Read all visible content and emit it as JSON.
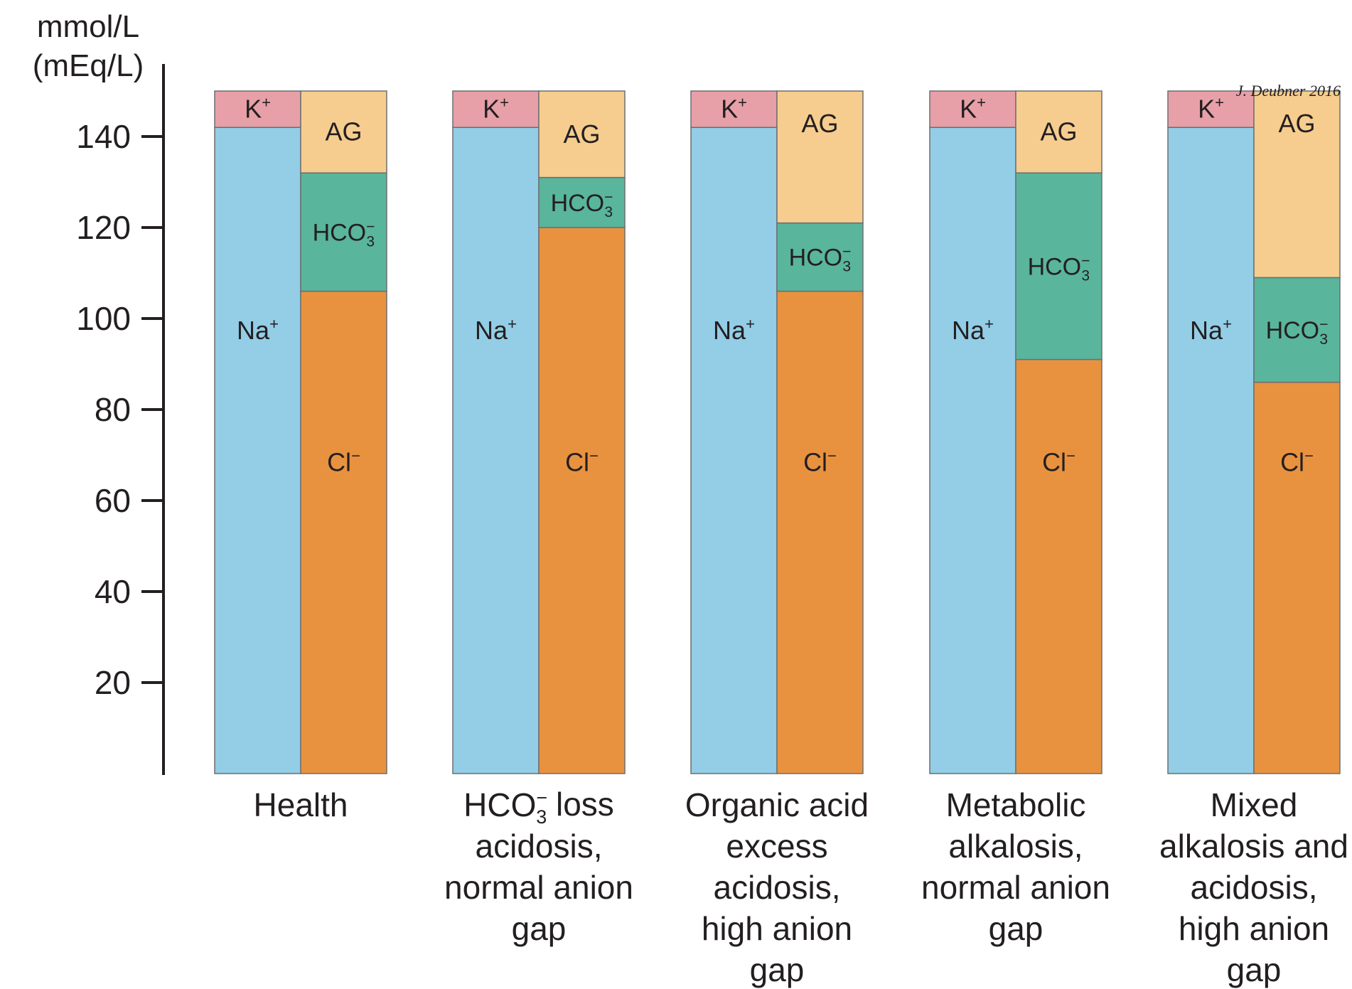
{
  "chart_data": {
    "type": "bar",
    "subtype": "stacked",
    "ylabel_lines": [
      "mmol/L",
      "(mEq/L)"
    ],
    "ylim": [
      0,
      150
    ],
    "yticks": [
      20,
      40,
      60,
      80,
      100,
      120,
      140
    ],
    "credit": "J. Deubner 2016",
    "segment_labels": {
      "K": {
        "base": "K",
        "sup": "+"
      },
      "Na": {
        "base": "Na",
        "sup": "+"
      },
      "AG": {
        "base": "AG"
      },
      "HCO3": {
        "base": "HCO",
        "sub": "3",
        "sup": "−"
      },
      "Cl": {
        "base": "Cl",
        "sup": "−"
      }
    },
    "colors": {
      "K": "#e8a0a8",
      "Na": "#93cde6",
      "AG": "#f6cd8f",
      "HCO3": "#59b59c",
      "Cl": "#e89240",
      "outline": "#6d6e71"
    },
    "categories": [
      {
        "label_lines": [
          [
            "Health"
          ]
        ],
        "cations": [
          {
            "key": "Na",
            "value": 142
          },
          {
            "key": "K",
            "value": 8
          }
        ],
        "anions": [
          {
            "key": "Cl",
            "value": 106
          },
          {
            "key": "HCO3",
            "value": 26
          },
          {
            "key": "AG",
            "value": 18
          }
        ]
      },
      {
        "label_lines": [
          [
            {
              "base": "HCO",
              "sub": "3",
              "sup": "−"
            },
            " loss"
          ],
          [
            "acidosis,"
          ],
          [
            "normal anion"
          ],
          [
            "gap"
          ]
        ],
        "cations": [
          {
            "key": "Na",
            "value": 142
          },
          {
            "key": "K",
            "value": 8
          }
        ],
        "anions": [
          {
            "key": "Cl",
            "value": 120
          },
          {
            "key": "HCO3",
            "value": 11
          },
          {
            "key": "AG",
            "value": 19
          }
        ]
      },
      {
        "label_lines": [
          [
            "Organic acid"
          ],
          [
            "excess"
          ],
          [
            "acidosis,"
          ],
          [
            "high anion"
          ],
          [
            "gap"
          ]
        ],
        "cations": [
          {
            "key": "Na",
            "value": 142
          },
          {
            "key": "K",
            "value": 8
          }
        ],
        "anions": [
          {
            "key": "Cl",
            "value": 106
          },
          {
            "key": "HCO3",
            "value": 15
          },
          {
            "key": "AG",
            "value": 29
          }
        ]
      },
      {
        "label_lines": [
          [
            "Metabolic"
          ],
          [
            "alkalosis,"
          ],
          [
            "normal anion"
          ],
          [
            "gap"
          ]
        ],
        "cations": [
          {
            "key": "Na",
            "value": 142
          },
          {
            "key": "K",
            "value": 8
          }
        ],
        "anions": [
          {
            "key": "Cl",
            "value": 91
          },
          {
            "key": "HCO3",
            "value": 41
          },
          {
            "key": "AG",
            "value": 18
          }
        ]
      },
      {
        "label_lines": [
          [
            "Mixed"
          ],
          [
            "alkalosis and"
          ],
          [
            "acidosis,"
          ],
          [
            "high anion"
          ],
          [
            "gap"
          ]
        ],
        "cations": [
          {
            "key": "Na",
            "value": 142
          },
          {
            "key": "K",
            "value": 8
          }
        ],
        "anions": [
          {
            "key": "Cl",
            "value": 86
          },
          {
            "key": "HCO3",
            "value": 23
          },
          {
            "key": "AG",
            "value": 41
          }
        ]
      }
    ]
  }
}
